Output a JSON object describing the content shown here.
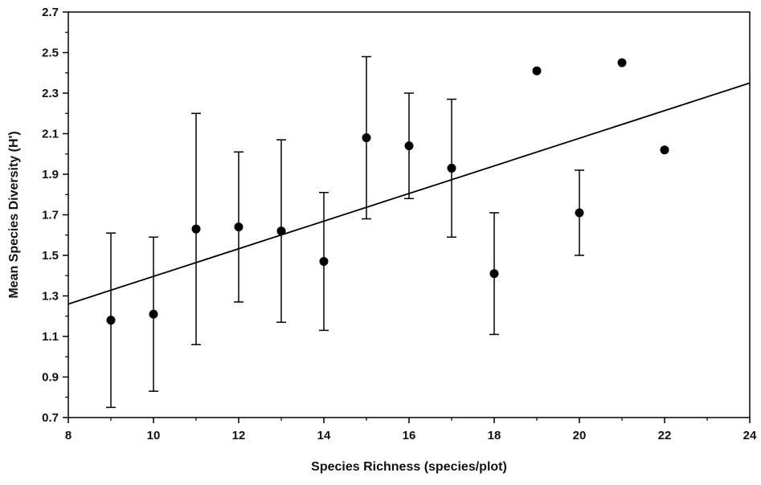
{
  "chart_data": {
    "type": "scatter",
    "title": "",
    "xlabel": "Species Richness  (species/plot)",
    "ylabel": "Mean Species Diversity  (H')",
    "xlim": [
      8,
      24
    ],
    "ylim": [
      0.7,
      2.7
    ],
    "x_ticks": [
      8,
      10,
      12,
      14,
      16,
      18,
      20,
      22,
      24
    ],
    "y_ticks": [
      0.7,
      0.9,
      1.1,
      1.3,
      1.5,
      1.7,
      1.9,
      2.1,
      2.3,
      2.5,
      2.7
    ],
    "x_tick_labels": [
      "8",
      "10",
      "12",
      "14",
      "16",
      "18",
      "20",
      "22",
      "24"
    ],
    "y_tick_labels": [
      "0.7",
      "0.9",
      "1.1",
      "1.3",
      "1.5",
      "1.7",
      "1.9",
      "2.1",
      "2.3",
      "2.5",
      "2.7"
    ],
    "grid": false,
    "legend": "none",
    "series": [
      {
        "x": [
          9,
          10,
          11,
          12,
          13,
          14,
          15,
          16,
          17,
          18,
          19,
          20,
          21,
          22
        ],
        "y": [
          1.18,
          1.21,
          1.63,
          1.64,
          1.62,
          1.47,
          2.08,
          2.04,
          1.93,
          1.41,
          2.41,
          1.71,
          2.45,
          2.02
        ],
        "y_low": [
          0.75,
          0.83,
          1.06,
          1.27,
          1.17,
          1.13,
          1.68,
          1.78,
          1.59,
          1.11,
          null,
          1.5,
          null,
          null
        ],
        "y_high": [
          1.61,
          1.59,
          2.2,
          2.01,
          2.07,
          1.81,
          2.48,
          2.3,
          2.27,
          1.71,
          null,
          1.92,
          null,
          null
        ],
        "marker_color": "#000000"
      }
    ],
    "trendline": {
      "x": [
        8,
        24
      ],
      "y": [
        1.26,
        2.35
      ],
      "color": "#000000"
    }
  }
}
